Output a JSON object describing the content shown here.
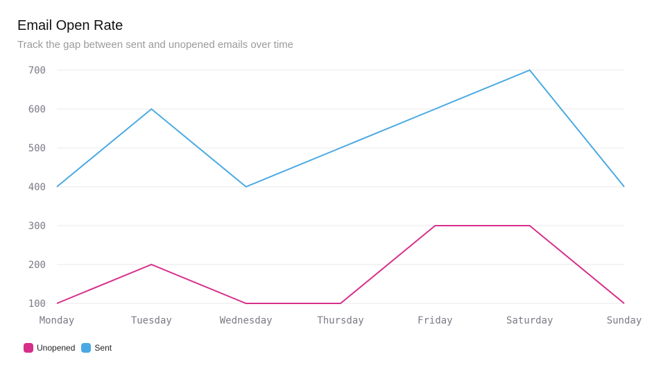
{
  "header": {
    "title": "Email Open Rate",
    "subtitle": "Track the gap between sent and unopened emails over time"
  },
  "colors": {
    "unopened": "#d62f8a",
    "sent": "#4aa9e3",
    "grid": "#e8e8e8",
    "tick_text": "#7a7a85"
  },
  "legend": {
    "placement": "bottom-left",
    "items": [
      {
        "label": "Unopened",
        "color": "#d62f8a"
      },
      {
        "label": "Sent",
        "color": "#4aa9e3"
      }
    ]
  },
  "chart_data": {
    "type": "line",
    "title": "Email Open Rate",
    "subtitle": "Track the gap between sent and unopened emails over time",
    "xlabel": "",
    "ylabel": "",
    "categories": [
      "Monday",
      "Tuesday",
      "Wednesday",
      "Thursday",
      "Friday",
      "Saturday",
      "Sunday"
    ],
    "yticks": [
      100,
      200,
      300,
      400,
      500,
      600,
      700
    ],
    "ylim": [
      100,
      700
    ],
    "grid": true,
    "series": [
      {
        "name": "Sent",
        "color": "#4aa9e3",
        "values": [
          400,
          600,
          400,
          500,
          600,
          700,
          400
        ]
      },
      {
        "name": "Unopened",
        "color": "#d62f8a",
        "values": [
          100,
          200,
          100,
          100,
          300,
          300,
          100
        ]
      }
    ]
  }
}
